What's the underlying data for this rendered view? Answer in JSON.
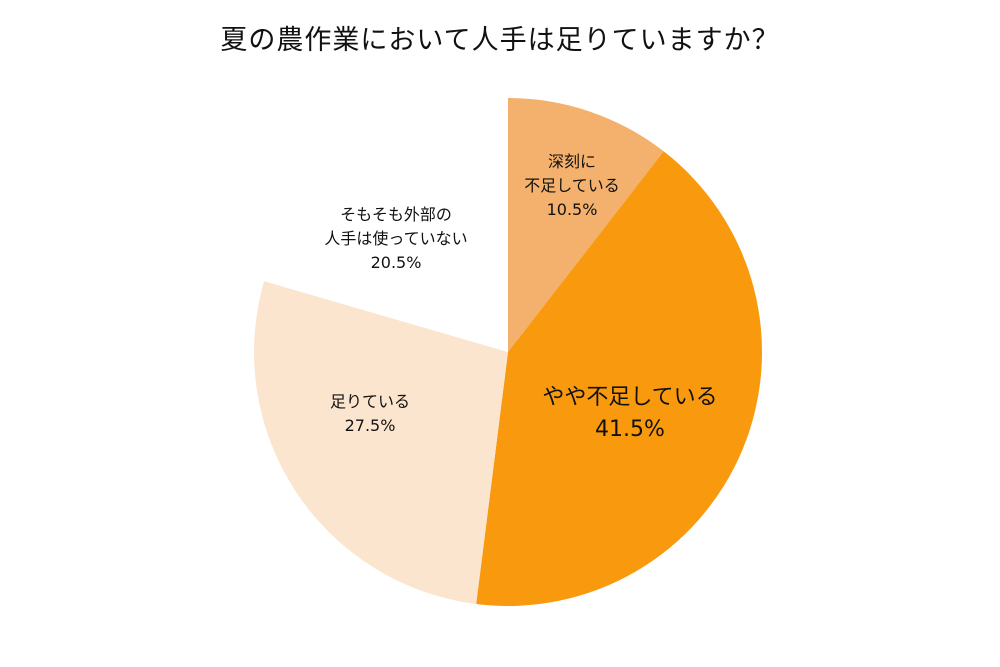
{
  "title": "夏の農作業において人手は足りていますか？",
  "chart_data": {
    "type": "pie",
    "start_angle_deg": 0,
    "direction": "clockwise",
    "slices": [
      {
        "label_lines": [
          "深刻に",
          "不足している"
        ],
        "value": 10.5,
        "value_text": "10.5%",
        "color": "#F4B16D"
      },
      {
        "label_lines": [
          "やや不足している"
        ],
        "value": 41.5,
        "value_text": "41.5%",
        "color": "#F99A0E"
      },
      {
        "label_lines": [
          "足りている"
        ],
        "value": 27.5,
        "value_text": "27.5%",
        "color": "#FCE5CF"
      },
      {
        "label_lines": [
          "そもそも外部の",
          "人手は使っていない"
        ],
        "value": 20.5,
        "value_text": "20.5%",
        "color": "#FFFFFF"
      }
    ]
  }
}
